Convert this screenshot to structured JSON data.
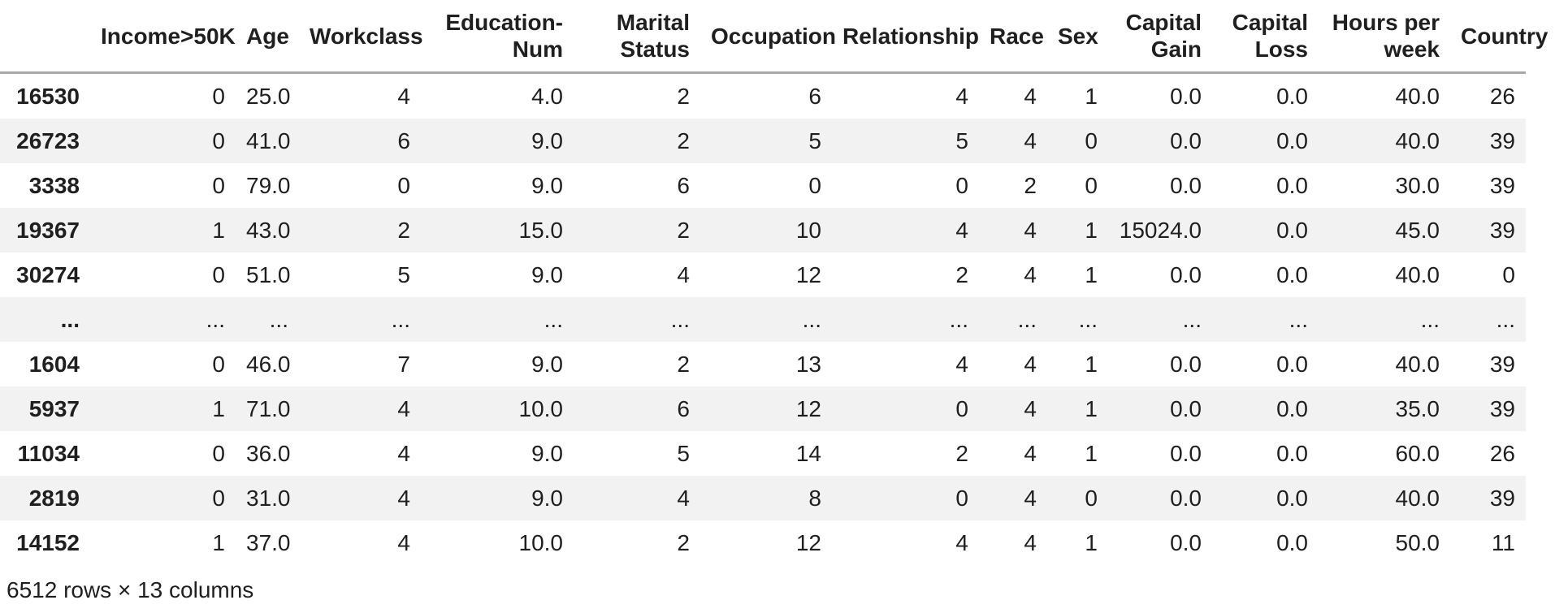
{
  "colors": {
    "text": "#1f1f1f",
    "stripe": "#f2f2f2",
    "header_border": "#a8a8a8",
    "background": "#ffffff"
  },
  "table": {
    "columns": [
      "",
      "Income>50K",
      "Age",
      "Workclass",
      "Education-Num",
      "Marital Status",
      "Occupation",
      "Relationship",
      "Race",
      "Sex",
      "Capital Gain",
      "Capital Loss",
      "Hours per week",
      "Country"
    ],
    "rows": [
      {
        "index": "16530",
        "values": [
          "0",
          "25.0",
          "4",
          "4.0",
          "2",
          "6",
          "4",
          "4",
          "1",
          "0.0",
          "0.0",
          "40.0",
          "26"
        ]
      },
      {
        "index": "26723",
        "values": [
          "0",
          "41.0",
          "6",
          "9.0",
          "2",
          "5",
          "5",
          "4",
          "0",
          "0.0",
          "0.0",
          "40.0",
          "39"
        ]
      },
      {
        "index": "3338",
        "values": [
          "0",
          "79.0",
          "0",
          "9.0",
          "6",
          "0",
          "0",
          "2",
          "0",
          "0.0",
          "0.0",
          "30.0",
          "39"
        ]
      },
      {
        "index": "19367",
        "values": [
          "1",
          "43.0",
          "2",
          "15.0",
          "2",
          "10",
          "4",
          "4",
          "1",
          "15024.0",
          "0.0",
          "45.0",
          "39"
        ]
      },
      {
        "index": "30274",
        "values": [
          "0",
          "51.0",
          "5",
          "9.0",
          "4",
          "12",
          "2",
          "4",
          "1",
          "0.0",
          "0.0",
          "40.0",
          "0"
        ]
      },
      {
        "index": "...",
        "values": [
          "...",
          "...",
          "...",
          "...",
          "...",
          "...",
          "...",
          "...",
          "...",
          "...",
          "...",
          "...",
          "..."
        ]
      },
      {
        "index": "1604",
        "values": [
          "0",
          "46.0",
          "7",
          "9.0",
          "2",
          "13",
          "4",
          "4",
          "1",
          "0.0",
          "0.0",
          "40.0",
          "39"
        ]
      },
      {
        "index": "5937",
        "values": [
          "1",
          "71.0",
          "4",
          "10.0",
          "6",
          "12",
          "0",
          "4",
          "1",
          "0.0",
          "0.0",
          "35.0",
          "39"
        ]
      },
      {
        "index": "11034",
        "values": [
          "0",
          "36.0",
          "4",
          "9.0",
          "5",
          "14",
          "2",
          "4",
          "1",
          "0.0",
          "0.0",
          "60.0",
          "26"
        ]
      },
      {
        "index": "2819",
        "values": [
          "0",
          "31.0",
          "4",
          "9.0",
          "4",
          "8",
          "0",
          "4",
          "0",
          "0.0",
          "0.0",
          "40.0",
          "39"
        ]
      },
      {
        "index": "14152",
        "values": [
          "1",
          "37.0",
          "4",
          "10.0",
          "2",
          "12",
          "4",
          "4",
          "1",
          "0.0",
          "0.0",
          "50.0",
          "11"
        ]
      }
    ],
    "shape_note": "6512 rows × 13 columns"
  }
}
